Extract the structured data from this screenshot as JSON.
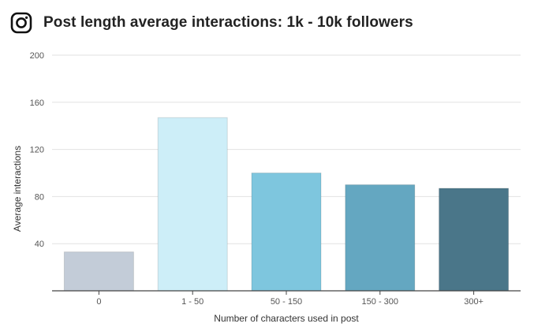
{
  "header": {
    "logo_icon": "instagram-icon",
    "title": "Post length average interactions: 1k - 10k followers"
  },
  "chart_data": {
    "type": "bar",
    "title": "Post length average interactions: 1k - 10k followers",
    "categories": [
      "0",
      "1 - 50",
      "50 - 150",
      "150 - 300",
      "300+"
    ],
    "values": [
      33,
      147,
      100,
      90,
      87
    ],
    "colors": [
      "#c3ccd8",
      "#cdeef8",
      "#7ec6de",
      "#64a7c1",
      "#4a7689"
    ],
    "xlabel": "Number of characters used in post",
    "ylabel": "Average interactions",
    "ylim": [
      0,
      200
    ],
    "yticks": [
      0,
      40,
      80,
      120,
      160,
      200
    ],
    "ytick_labels": [
      "40",
      "80",
      "120",
      "160",
      "200"
    ],
    "grid": true,
    "legend": "none"
  }
}
